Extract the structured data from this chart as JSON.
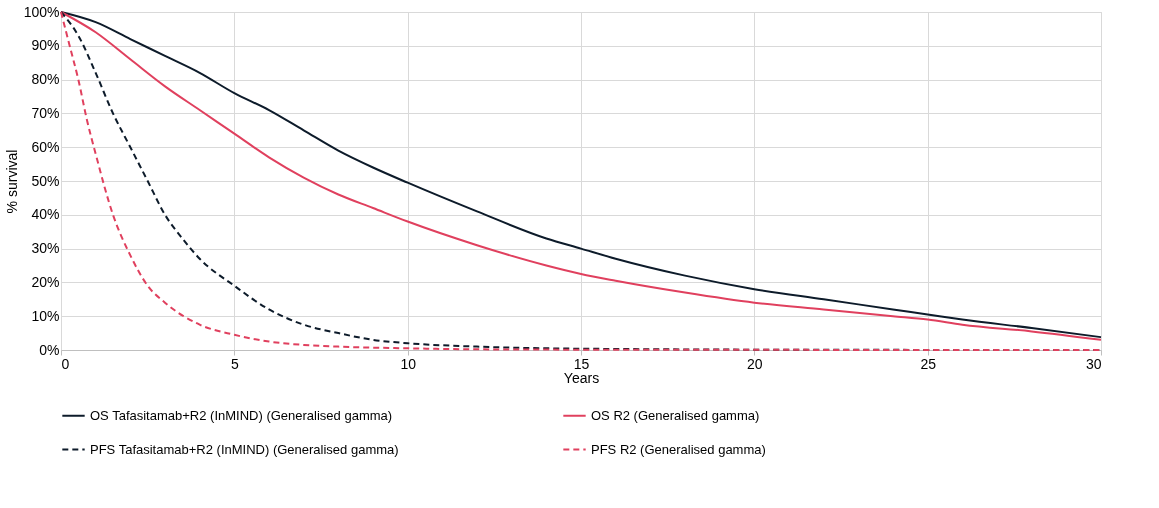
{
  "chart_data": {
    "type": "line",
    "xlabel": "Years",
    "ylabel": "% survival",
    "xlim": [
      0,
      30
    ],
    "xticks": [
      0,
      5,
      10,
      15,
      20,
      25,
      30
    ],
    "ylim": [
      0,
      100
    ],
    "yticks": [
      {
        "value": 0,
        "label": "0%"
      },
      {
        "value": 10,
        "label": "10%"
      },
      {
        "value": 20,
        "label": "20%"
      },
      {
        "value": 30,
        "label": "30%"
      },
      {
        "value": 40,
        "label": "40%"
      },
      {
        "value": 50,
        "label": "50%"
      },
      {
        "value": 60,
        "label": "60%"
      },
      {
        "value": 70,
        "label": "70%"
      },
      {
        "value": 80,
        "label": "80%"
      },
      {
        "value": 90,
        "label": "90%"
      },
      {
        "value": 100,
        "label": "100%"
      }
    ],
    "grid": true,
    "legend": "bottom",
    "marker": "none",
    "series": [
      {
        "name": "OS Tafasitamab+R2 (InMIND) (Generalised gamma)",
        "color": "#0d1b2a",
        "line_style": "solid",
        "x": [
          0,
          1,
          2,
          3,
          4,
          5,
          6,
          7,
          8,
          9,
          10,
          12,
          14,
          15,
          16,
          18,
          20,
          22,
          24,
          25,
          26,
          28,
          30
        ],
        "values": [
          100,
          97,
          92,
          87,
          82,
          76,
          71,
          65,
          59,
          54,
          49.5,
          41,
          33,
          30,
          27,
          22,
          18,
          15,
          12,
          10.5,
          9,
          6.5,
          3.8
        ]
      },
      {
        "name": "OS R2 (Generalised gamma)",
        "color": "#e0405e",
        "line_style": "solid",
        "x": [
          0,
          1,
          2,
          3,
          4,
          5,
          6,
          7,
          8,
          9,
          10,
          12,
          14,
          15,
          16,
          18,
          20,
          22,
          24,
          25,
          26,
          28,
          30
        ],
        "values": [
          100,
          94,
          86,
          78,
          71,
          64,
          57,
          51,
          46,
          42,
          38,
          31,
          25,
          22.5,
          20.5,
          17,
          14,
          12,
          10,
          9,
          7.5,
          5.5,
          3
        ]
      },
      {
        "name": "PFS Tafasitamab+R2 (InMIND) (Generalised gamma)",
        "color": "#0d1b2a",
        "line_style": "dashed",
        "x": [
          0,
          0.5,
          1,
          1.5,
          2,
          2.5,
          3,
          3.5,
          4,
          5,
          6,
          7,
          8,
          9,
          10,
          12,
          14,
          16,
          20,
          30
        ],
        "values": [
          100,
          93,
          82,
          70,
          60,
          50,
          40,
          33,
          27,
          19,
          12,
          7.5,
          5,
          3,
          2,
          1,
          0.5,
          0.3,
          0.1,
          0
        ]
      },
      {
        "name": "PFS R2 (Generalised gamma)",
        "color": "#e0405e",
        "line_style": "dashed",
        "x": [
          0,
          0.25,
          0.5,
          0.75,
          1,
          1.5,
          2,
          2.5,
          3,
          4,
          5,
          6,
          7,
          8,
          10,
          12,
          15,
          30
        ],
        "values": [
          100,
          90,
          80,
          68,
          58,
          40,
          28,
          19,
          14,
          7.5,
          4.5,
          2.5,
          1.5,
          1,
          0.5,
          0.2,
          0.1,
          0
        ]
      }
    ]
  }
}
